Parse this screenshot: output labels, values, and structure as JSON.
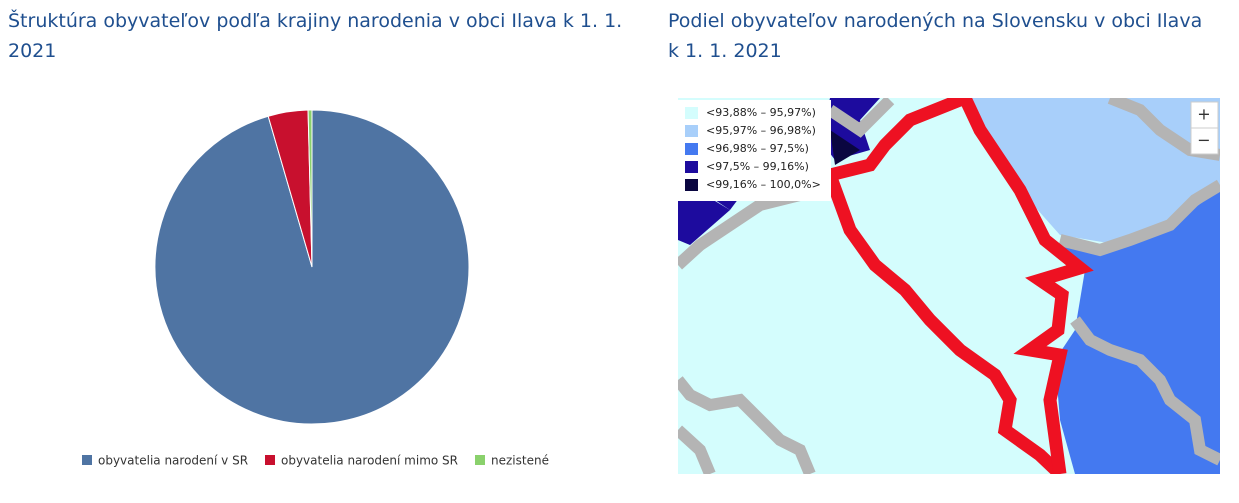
{
  "chart_data": {
    "type": "pie",
    "title": "Štruktúra obyvateľov podľa krajiny narodenia v obci Ilava k 1. 1. 2021",
    "series": [
      {
        "name": "obyvatelia narodení v SR",
        "color": "#4f74a3",
        "values": [
          95.5
        ]
      },
      {
        "name": "obyvatelia narodení mimo SR",
        "color": "#c8102e",
        "values": [
          4.1
        ]
      },
      {
        "name": "nezistené",
        "color": "#8ad16c",
        "values": [
          0.4
        ]
      }
    ]
  },
  "map": {
    "title": "Podiel obyvateľov narodených na Slovensku v obci Ilava k 1. 1. 2021",
    "legend": [
      {
        "label": "<93,88% – 95,97%)",
        "color": "#d4fdfd"
      },
      {
        "label": "<95,97% – 96,98%)",
        "color": "#a8cffa"
      },
      {
        "label": "<96,98% – 97,5%)",
        "color": "#4479f0"
      },
      {
        "label": "<97,5% – 99,16%)",
        "color": "#1d0b9e"
      },
      {
        "label": "<99,16% – 100,0%>",
        "color": "#0a0640"
      }
    ],
    "zoom_in": "+",
    "zoom_out": "−"
  }
}
